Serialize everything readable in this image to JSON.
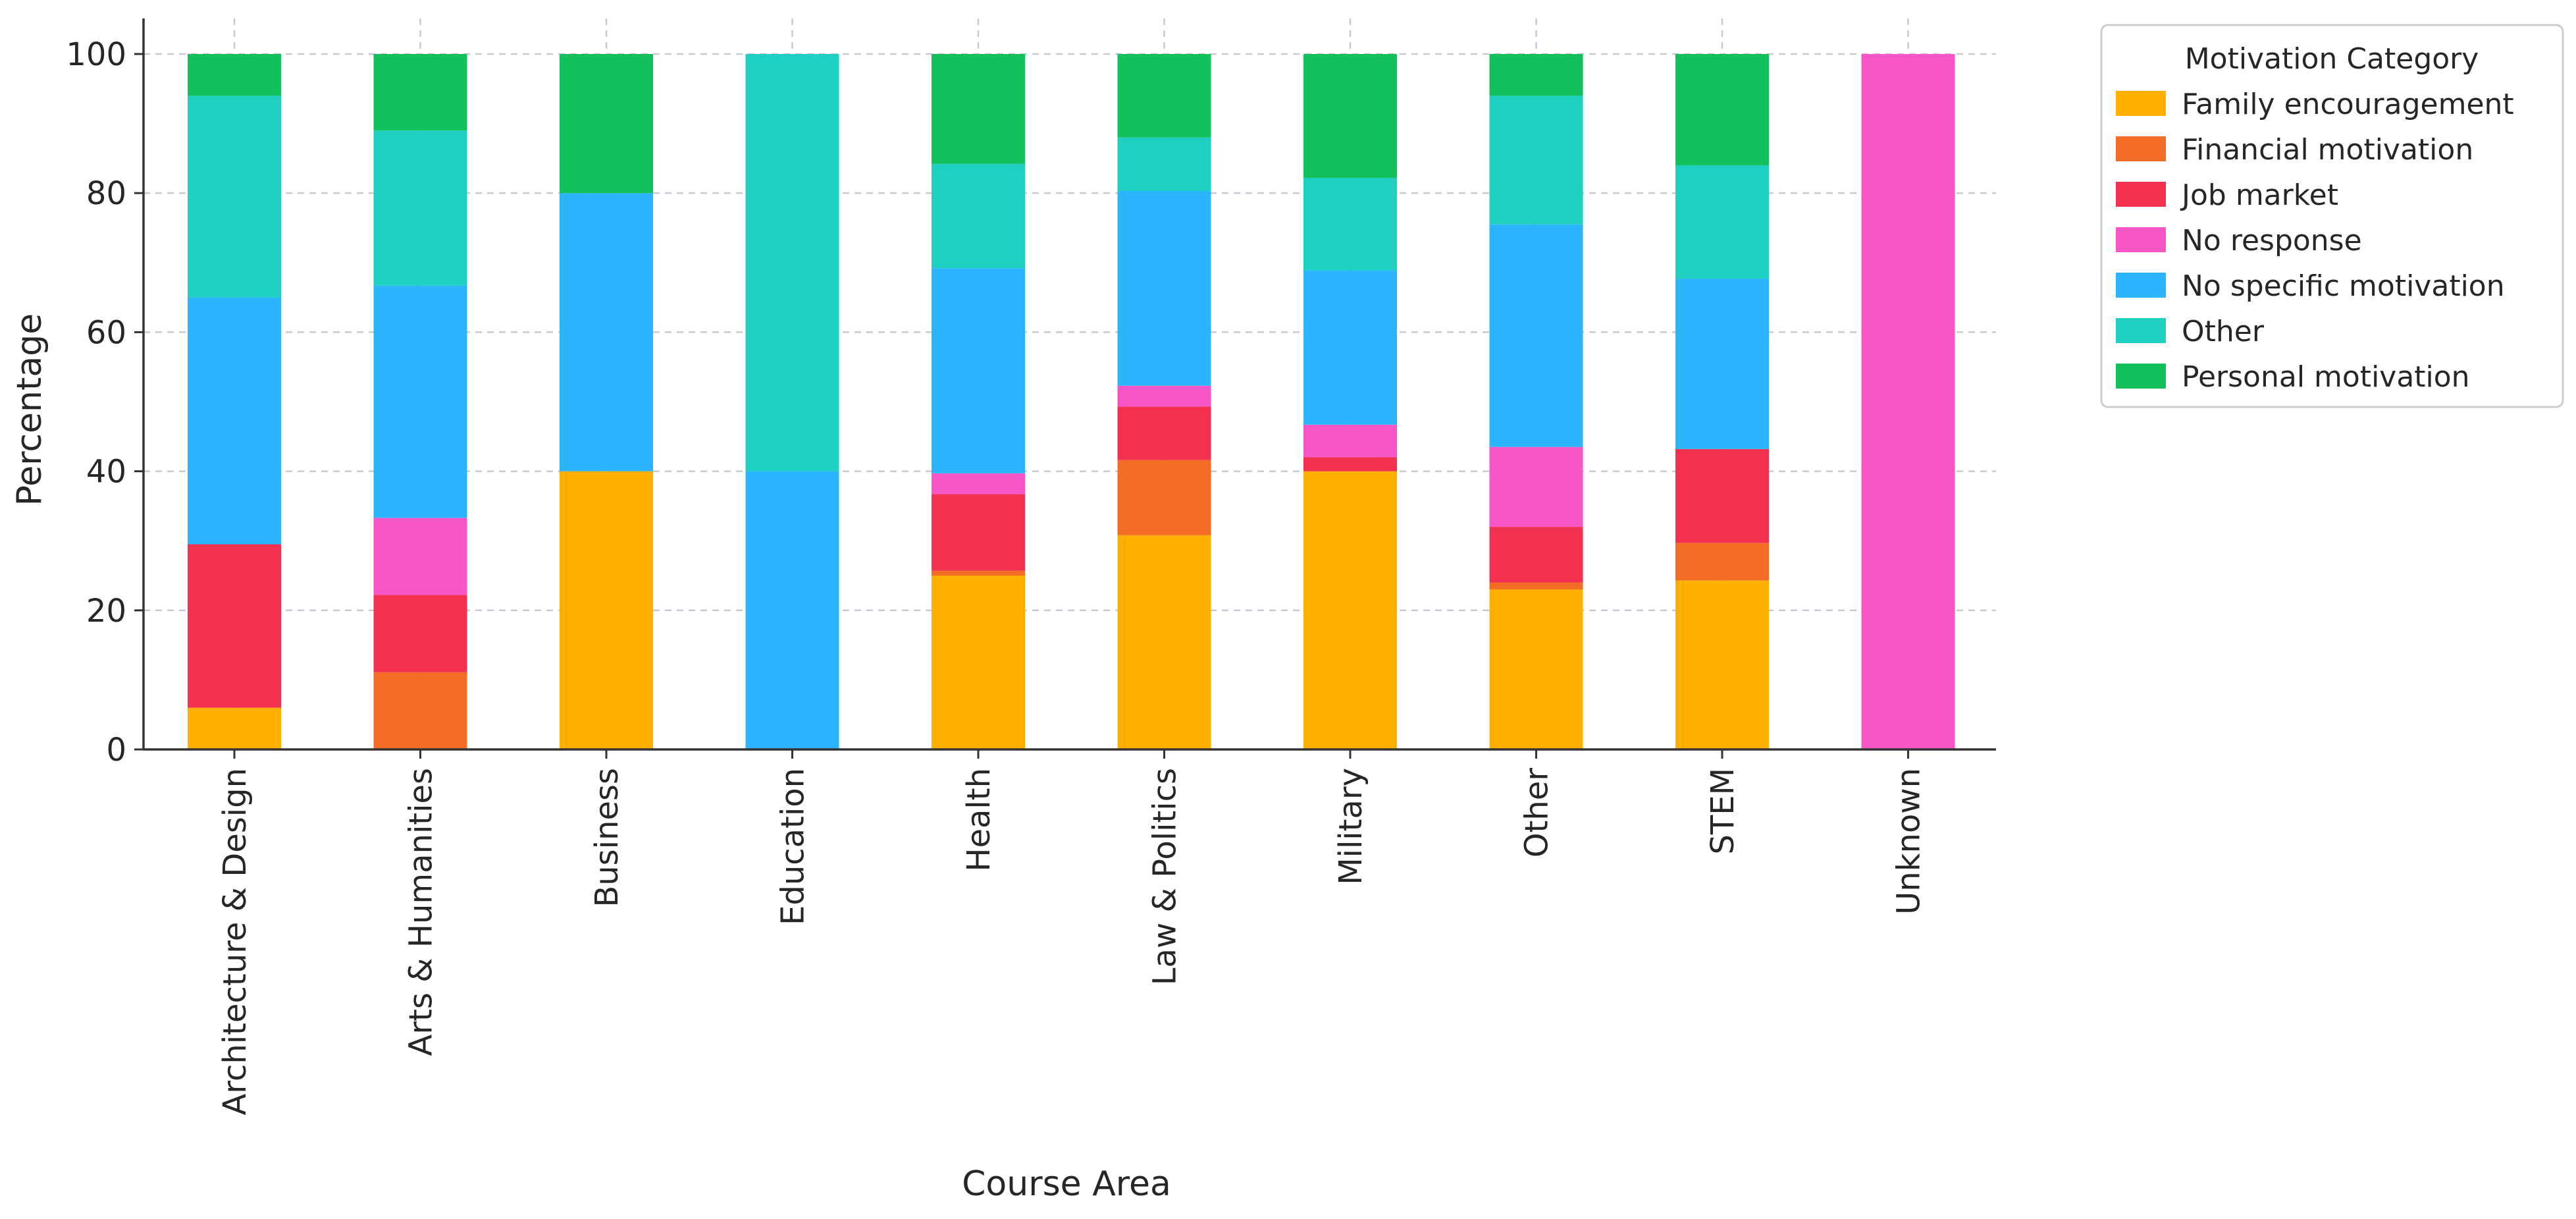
{
  "chart_data": {
    "type": "bar",
    "stacked": true,
    "title": "",
    "xlabel": "Course Area",
    "ylabel": "Percentage",
    "ylim": [
      0,
      100
    ],
    "yticks": [
      0,
      20,
      40,
      60,
      80,
      100
    ],
    "grid": true,
    "legend": {
      "title": "Motivation Category",
      "placement": "upper-right-outside"
    },
    "categories": [
      "Architecture & Design",
      "Arts & Humanities",
      "Business",
      "Education",
      "Health",
      "Law & Politics",
      "Military",
      "Other",
      "STEM",
      "Unknown"
    ],
    "series": [
      {
        "name": "Family encouragement",
        "color": "#ffb000",
        "values": [
          6,
          0,
          40,
          0,
          25,
          30.8,
          40,
          23,
          24.3,
          0
        ]
      },
      {
        "name": "Financial motivation",
        "color": "#f46d25",
        "values": [
          0,
          11.1,
          0,
          0,
          0.7,
          10.8,
          0,
          1,
          5.4,
          0
        ]
      },
      {
        "name": "Job market",
        "color": "#f2304f",
        "values": [
          23.5,
          11.1,
          0,
          0,
          11,
          7.7,
          2,
          8,
          13.5,
          0
        ]
      },
      {
        "name": "No response",
        "color": "#f757c6",
        "values": [
          0,
          11.1,
          0,
          0,
          3,
          3,
          4.7,
          11.5,
          0,
          100
        ]
      },
      {
        "name": "No specific motivation",
        "color": "#2bb5ff",
        "values": [
          35.5,
          33.4,
          40,
          40,
          29.5,
          28,
          22.2,
          32,
          24.5,
          0
        ]
      },
      {
        "name": "Other",
        "color": "#1fd0c0",
        "values": [
          29,
          22.3,
          0,
          60,
          15,
          7.7,
          13.3,
          18.5,
          16.3,
          0
        ]
      },
      {
        "name": "Personal motivation",
        "color": "#12c05c",
        "values": [
          6,
          11,
          20,
          0,
          15.8,
          12,
          17.8,
          6,
          16,
          0
        ]
      }
    ]
  }
}
